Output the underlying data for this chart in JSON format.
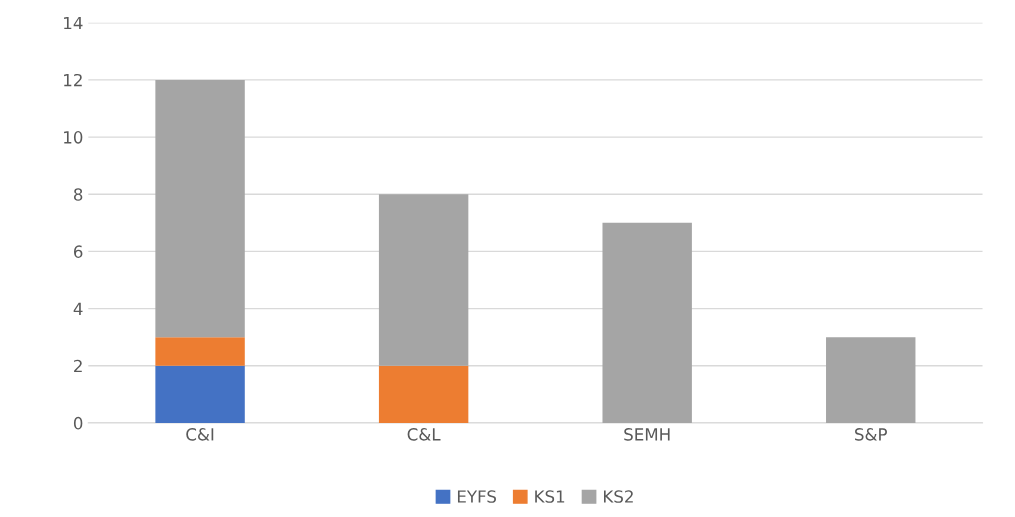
{
  "chart_data": {
    "type": "bar",
    "stacked": true,
    "categories": [
      "C&I",
      "C&L",
      "SEMH",
      "S&P"
    ],
    "series": [
      {
        "name": "EYFS",
        "color": "#4472c4",
        "values": [
          2,
          0,
          0,
          0
        ]
      },
      {
        "name": "KS1",
        "color": "#ed7d31",
        "values": [
          1,
          2,
          0,
          0
        ]
      },
      {
        "name": "KS2",
        "color": "#a5a5a5",
        "values": [
          9,
          6,
          7,
          3
        ]
      }
    ],
    "ylim": [
      0,
      14
    ],
    "yticks": [
      0,
      2,
      4,
      6,
      8,
      10,
      12,
      14
    ],
    "grid": "y",
    "legend": "bottom"
  }
}
